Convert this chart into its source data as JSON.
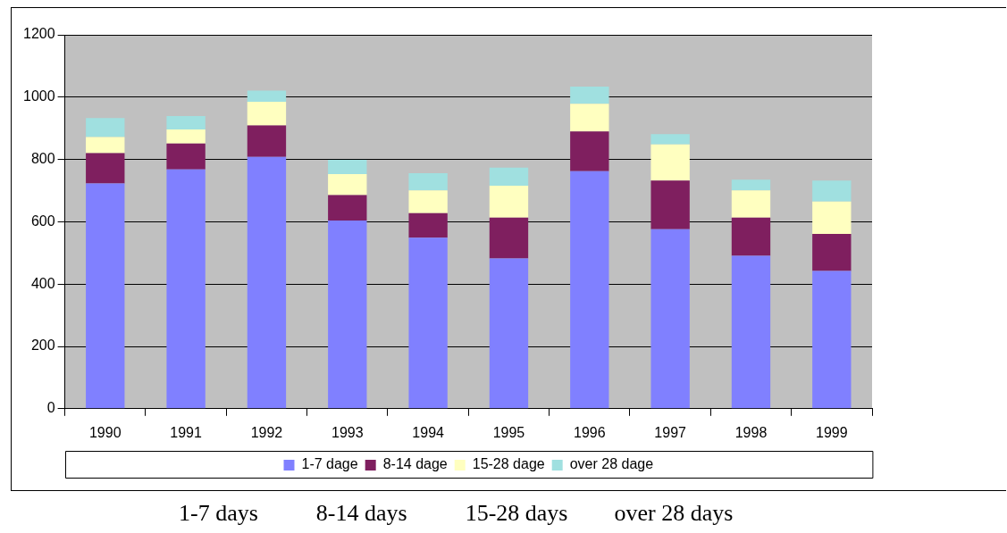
{
  "chart_data": {
    "type": "bar",
    "stacked": true,
    "categories": [
      "1990",
      "1991",
      "1992",
      "1993",
      "1994",
      "1995",
      "1996",
      "1997",
      "1998",
      "1999"
    ],
    "series": [
      {
        "name": "1-7 dage",
        "color": "#8080ff",
        "values": [
          723,
          768,
          808,
          604,
          549,
          482,
          762,
          576,
          491,
          442
        ]
      },
      {
        "name": "8-14 dage",
        "color": "#7f1f5f",
        "values": [
          97,
          83,
          101,
          82,
          79,
          131,
          128,
          156,
          122,
          119
        ]
      },
      {
        "name": "15-28 dage",
        "color": "#ffffc0",
        "values": [
          52,
          45,
          76,
          67,
          73,
          103,
          89,
          116,
          88,
          104
        ]
      },
      {
        "name": "over 28 dage",
        "color": "#a0e0e0",
        "values": [
          61,
          43,
          36,
          46,
          55,
          58,
          55,
          33,
          34,
          67
        ]
      }
    ],
    "ylim": [
      0,
      1200
    ],
    "yticks": [
      0,
      200,
      400,
      600,
      800,
      1000,
      1200
    ],
    "grid": "y",
    "legend": "bottom",
    "annotations": [
      "1-7 days          8-14 days          15-28 days        over 28 days"
    ]
  }
}
